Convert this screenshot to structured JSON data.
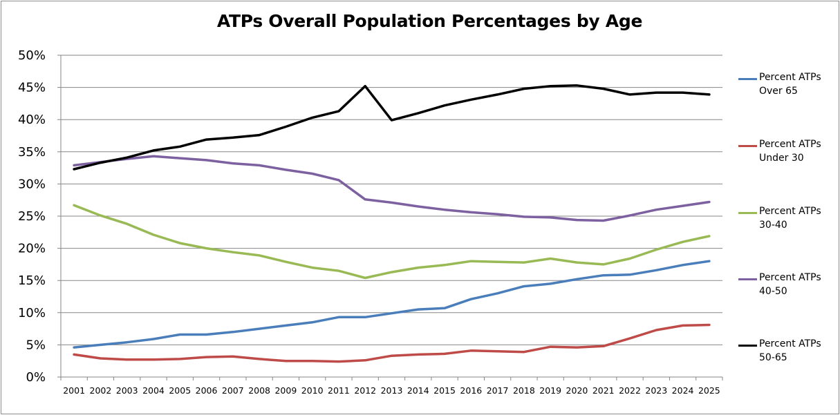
{
  "chart_data": {
    "type": "line",
    "title": "ATPs Overall Population Percentages by Age",
    "xlabel": "",
    "ylabel": "",
    "ylim": [
      0,
      50
    ],
    "y_tick_step": 5,
    "y_tick_format": "percent",
    "y_ticks": [
      "0%",
      "5%",
      "10%",
      "15%",
      "20%",
      "25%",
      "30%",
      "35%",
      "40%",
      "45%",
      "50%"
    ],
    "grid": true,
    "legend_position": "right",
    "x": [
      "2001",
      "2002",
      "2003",
      "2004",
      "2005",
      "2006",
      "2007",
      "2008",
      "2009",
      "2010",
      "2011",
      "2012",
      "2013",
      "2014",
      "2015",
      "2016",
      "2017",
      "2018",
      "2019",
      "2020",
      "2021",
      "2022",
      "2023",
      "2024",
      "2025"
    ],
    "series": [
      {
        "name": "Percent ATPs Over 65",
        "legend_line1": "Percent ATPs",
        "legend_line2": "Over 65",
        "color": "#4a7ebb",
        "values": [
          4.6,
          5.0,
          5.4,
          5.9,
          6.6,
          6.6,
          7.0,
          7.5,
          8.0,
          8.5,
          9.3,
          9.3,
          9.9,
          10.5,
          10.7,
          12.1,
          13.0,
          14.1,
          14.5,
          15.2,
          15.8,
          15.9,
          16.6,
          17.4,
          18.0
        ]
      },
      {
        "name": "Percent ATPs Under 30",
        "legend_line1": "Percent ATPs",
        "legend_line2": "Under 30",
        "color": "#be4b48",
        "values": [
          3.5,
          2.9,
          2.7,
          2.7,
          2.8,
          3.1,
          3.2,
          2.8,
          2.5,
          2.5,
          2.4,
          2.6,
          3.3,
          3.5,
          3.6,
          4.1,
          4.0,
          3.9,
          4.7,
          4.6,
          4.8,
          6.0,
          7.3,
          8.0,
          8.1
        ]
      },
      {
        "name": "Percent ATPs 30-40",
        "legend_line1": "Percent ATPs",
        "legend_line2": "30-40",
        "color": "#98b954",
        "values": [
          26.7,
          25.1,
          23.8,
          22.1,
          20.8,
          20.0,
          19.4,
          18.9,
          17.9,
          17.0,
          16.5,
          15.4,
          16.3,
          17.0,
          17.4,
          18.0,
          17.9,
          17.8,
          18.4,
          17.8,
          17.5,
          18.4,
          19.8,
          21.0,
          21.9
        ]
      },
      {
        "name": "Percent ATPs 40-50",
        "legend_line1": "Percent ATPs",
        "legend_line2": "40-50",
        "color": "#7d60a0",
        "values": [
          32.9,
          33.4,
          33.9,
          34.3,
          34.0,
          33.7,
          33.2,
          32.9,
          32.2,
          31.6,
          30.6,
          27.6,
          27.1,
          26.5,
          26.0,
          25.6,
          25.3,
          24.9,
          24.8,
          24.4,
          24.3,
          25.1,
          26.0,
          26.6,
          27.2
        ]
      },
      {
        "name": "Percent ATPs 50-65",
        "legend_line1": "Percent ATPs",
        "legend_line2": "50-65",
        "color": "#000000",
        "values": [
          32.3,
          33.3,
          34.1,
          35.2,
          35.8,
          36.9,
          37.2,
          37.6,
          38.9,
          40.3,
          41.3,
          45.2,
          39.9,
          41.0,
          42.2,
          43.1,
          43.9,
          44.8,
          45.2,
          45.3,
          44.8,
          43.9,
          44.2,
          44.2,
          43.9
        ]
      }
    ]
  }
}
